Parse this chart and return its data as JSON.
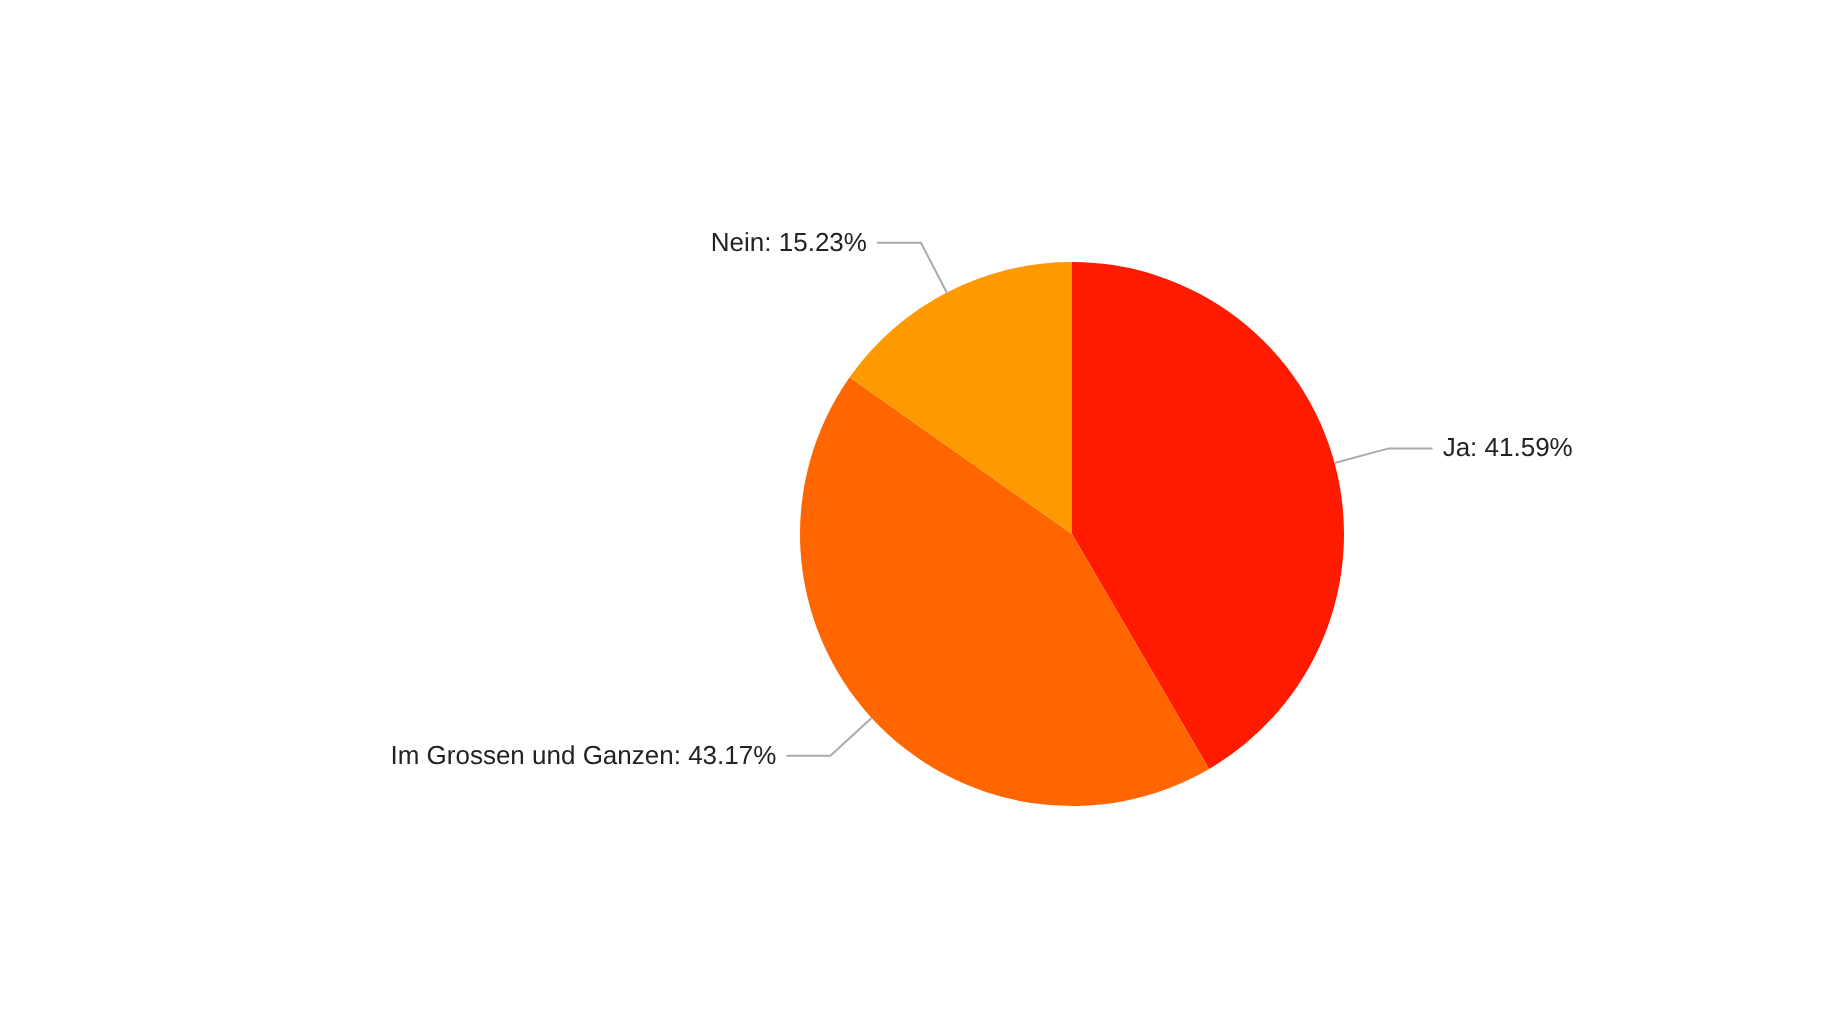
{
  "chart_data": {
    "type": "pie",
    "categories": [
      "Ja",
      "Im Grossen und Ganzen",
      "Nein"
    ],
    "values": [
      41.59,
      43.17,
      15.23
    ],
    "colors": [
      "#ff1a00",
      "#ff6600",
      "#ff9900"
    ],
    "value_labels": [
      "41.59%",
      "43.17%",
      "15.23%"
    ],
    "legend": false
  }
}
